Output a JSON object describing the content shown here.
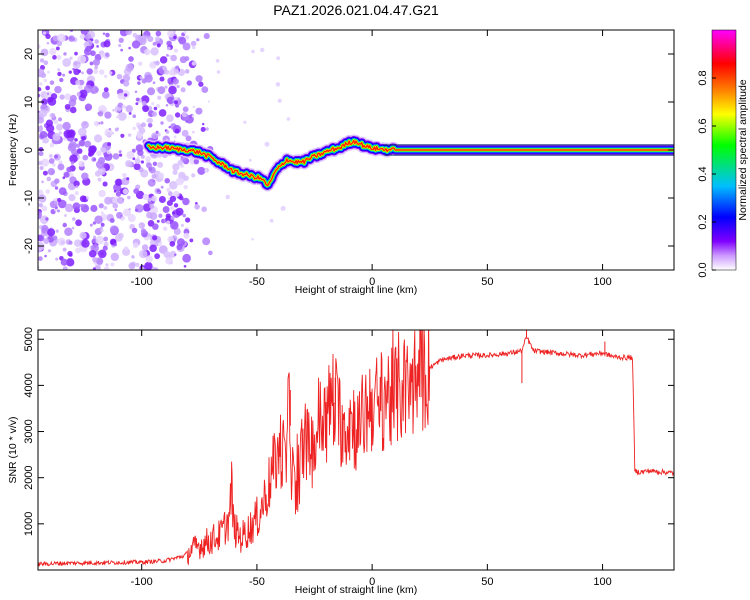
{
  "figure_title": "PAZ1.2026.021.04.47.G21",
  "chart_data": [
    {
      "type": "heatmap",
      "title": "PAZ1.2026.021.04.47.G21",
      "xlabel": "Height of straight line (km)",
      "ylabel": "Frequency (Hz)",
      "xlim": [
        -145,
        131
      ],
      "ylim": [
        -25,
        25
      ],
      "xticks": [
        -100,
        -50,
        0,
        50,
        100
      ],
      "yticks": [
        -20,
        -10,
        0,
        10,
        20
      ],
      "xtick_labels": [
        "-100",
        "-50",
        "0",
        "50",
        "100"
      ],
      "ytick_labels": [
        "-20",
        "-10",
        "0",
        "10",
        "20"
      ],
      "signal_trace": {
        "x": [
          -97,
          -90,
          -85,
          -80,
          -75,
          -70,
          -67,
          -63,
          -60,
          -56,
          -52,
          -48,
          -45,
          -42,
          -40,
          -37,
          -34,
          -30,
          -26,
          -22,
          -18,
          -14,
          -10,
          -7,
          -4,
          -1,
          3,
          10,
          20,
          40,
          60,
          80,
          100,
          131
        ],
        "y": [
          0.5,
          0.5,
          0.2,
          0.0,
          -0.5,
          -1.5,
          -2.5,
          -3.5,
          -4.5,
          -5.0,
          -5.5,
          -6.0,
          -7.5,
          -4.5,
          -3.5,
          -2.0,
          -2.5,
          -2.5,
          -1.5,
          -0.8,
          0.0,
          0.5,
          1.5,
          1.8,
          1.0,
          0.5,
          0.2,
          0.0,
          0.0,
          0.0,
          0.0,
          0.0,
          0.0,
          0.0
        ]
      },
      "noise_region_x": [
        -145,
        -80
      ],
      "colorbar": {
        "label": "Normalized spectral amplitude",
        "range": [
          0,
          1
        ],
        "ticks": [
          0.0,
          0.2,
          0.4,
          0.6,
          0.8
        ],
        "tick_labels": [
          "0.0",
          "0.2",
          "0.4",
          "0.6",
          "0.8"
        ],
        "colors": [
          "#ffffff",
          "#cc99ff",
          "#7f00ff",
          "#0000ff",
          "#00bfff",
          "#00ff00",
          "#ffff00",
          "#ff7f00",
          "#ff0000",
          "#ff00ff"
        ]
      }
    },
    {
      "type": "line",
      "xlabel": "Height of straight line (km)",
      "ylabel": "SNR (10 * v/v)",
      "xlim": [
        -145,
        131
      ],
      "ylim": [
        0,
        5200
      ],
      "xticks": [
        -100,
        -50,
        0,
        50,
        100
      ],
      "yticks": [
        1000,
        2000,
        3000,
        4000,
        5000
      ],
      "xtick_labels": [
        "-100",
        "-50",
        "0",
        "50",
        "100"
      ],
      "ytick_labels": [
        "1000",
        "2000",
        "3000",
        "4000",
        "5000"
      ],
      "color": "#ee2222",
      "series": [
        {
          "name": "SNR",
          "x": [
            -145,
            -130,
            -115,
            -100,
            -90,
            -82,
            -78,
            -74,
            -70,
            -66,
            -62,
            -61,
            -60,
            -57,
            -53,
            -49,
            -45,
            -40,
            -37,
            -36,
            -35,
            -33,
            -30,
            -27,
            -25,
            -23,
            -20,
            -17,
            -15,
            -12,
            -9,
            -6,
            -3,
            0,
            3,
            6,
            9,
            12,
            15,
            18,
            21,
            24,
            27,
            30,
            35,
            40,
            50,
            60,
            65,
            67,
            70,
            80,
            90,
            100,
            105,
            110,
            113,
            114,
            116,
            120,
            131
          ],
          "y": [
            130,
            150,
            160,
            170,
            200,
            300,
            450,
            550,
            650,
            750,
            1100,
            1800,
            900,
            700,
            900,
            1200,
            1800,
            2700,
            2300,
            3950,
            2300,
            1500,
            2800,
            2600,
            2700,
            3300,
            3200,
            3800,
            3400,
            3100,
            3300,
            3000,
            3400,
            3700,
            3500,
            3900,
            3600,
            4000,
            3850,
            4100,
            4200,
            4350,
            4450,
            4550,
            4600,
            4650,
            4650,
            4700,
            4750,
            5050,
            4750,
            4700,
            4650,
            4700,
            4620,
            4600,
            4600,
            2150,
            2120,
            2150,
            2100
          ]
        }
      ],
      "spikes": [
        {
          "x": -61,
          "y": 1820
        },
        {
          "x": -35.5,
          "y": 3900
        },
        {
          "x": -16,
          "y": 4170
        },
        {
          "x": 67,
          "y": 5200
        },
        {
          "x": 101,
          "y": 4950
        },
        {
          "x": 65,
          "y": 4050
        }
      ]
    }
  ]
}
